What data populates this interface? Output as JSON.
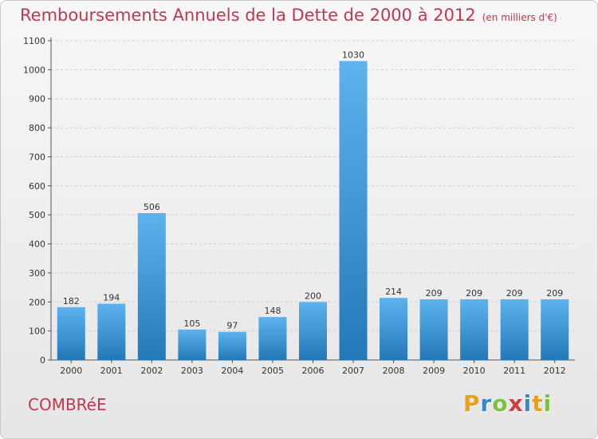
{
  "title": "Remboursements Annuels de la Dette de 2000 à 2012",
  "unit": "(en milliers d'€)",
  "commune": "COMBRéE",
  "logo": {
    "text": "Proxiti",
    "letters": [
      "P",
      "r",
      "o",
      "x",
      "i",
      "t",
      "i"
    ],
    "colors": [
      "#e8a020",
      "#2e8bd8",
      "#7cc242",
      "#d23c3c",
      "#2e8bd8",
      "#e8a020",
      "#7cc242"
    ]
  },
  "colors": {
    "title": "#c0384f",
    "bar_top": "#5db3ee",
    "bar_bottom": "#2478b8"
  },
  "chart_data": {
    "type": "bar",
    "categories": [
      "2000",
      "2001",
      "2002",
      "2003",
      "2004",
      "2005",
      "2006",
      "2007",
      "2008",
      "2009",
      "2010",
      "2011",
      "2012"
    ],
    "values": [
      182,
      194,
      506,
      105,
      97,
      148,
      200,
      1030,
      214,
      209,
      209,
      209,
      209
    ],
    "ylim": [
      0,
      1100
    ],
    "yticks": [
      0,
      100,
      200,
      300,
      400,
      500,
      600,
      700,
      800,
      900,
      1000,
      1100
    ],
    "grid": true,
    "data_labels": true
  }
}
